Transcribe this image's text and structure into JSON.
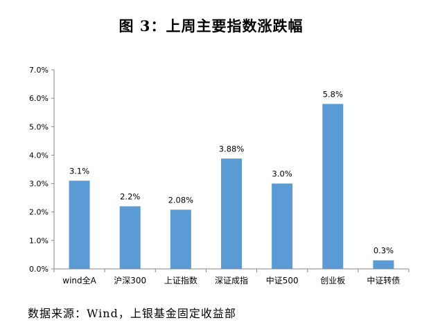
{
  "title": "图 3：上周主要指数涨跌幅",
  "source": "数据来源：Wind，上银基金固定收益部",
  "chart_data": {
    "type": "bar",
    "title": "",
    "xlabel": "",
    "ylabel": "",
    "categories": [
      "wind全A",
      "沪深300",
      "上证指数",
      "深证成指",
      "中证500",
      "创业板",
      "中证转债"
    ],
    "values": [
      3.1,
      2.2,
      2.08,
      3.88,
      3.0,
      5.8,
      0.3
    ],
    "data_labels": [
      "3.1%",
      "2.2%",
      "2.08%",
      "3.88%",
      "3.0%",
      "5.8%",
      "0.3%"
    ],
    "ylim": [
      0,
      7
    ],
    "yticks": [
      0,
      1,
      2,
      3,
      4,
      5,
      6,
      7
    ],
    "ytick_labels": [
      "0.0%",
      "1.0%",
      "2.0%",
      "3.0%",
      "4.0%",
      "5.0%",
      "6.0%",
      "7.0%"
    ],
    "bar_color": "#5b9bd5",
    "grid": false,
    "legend": "none"
  }
}
